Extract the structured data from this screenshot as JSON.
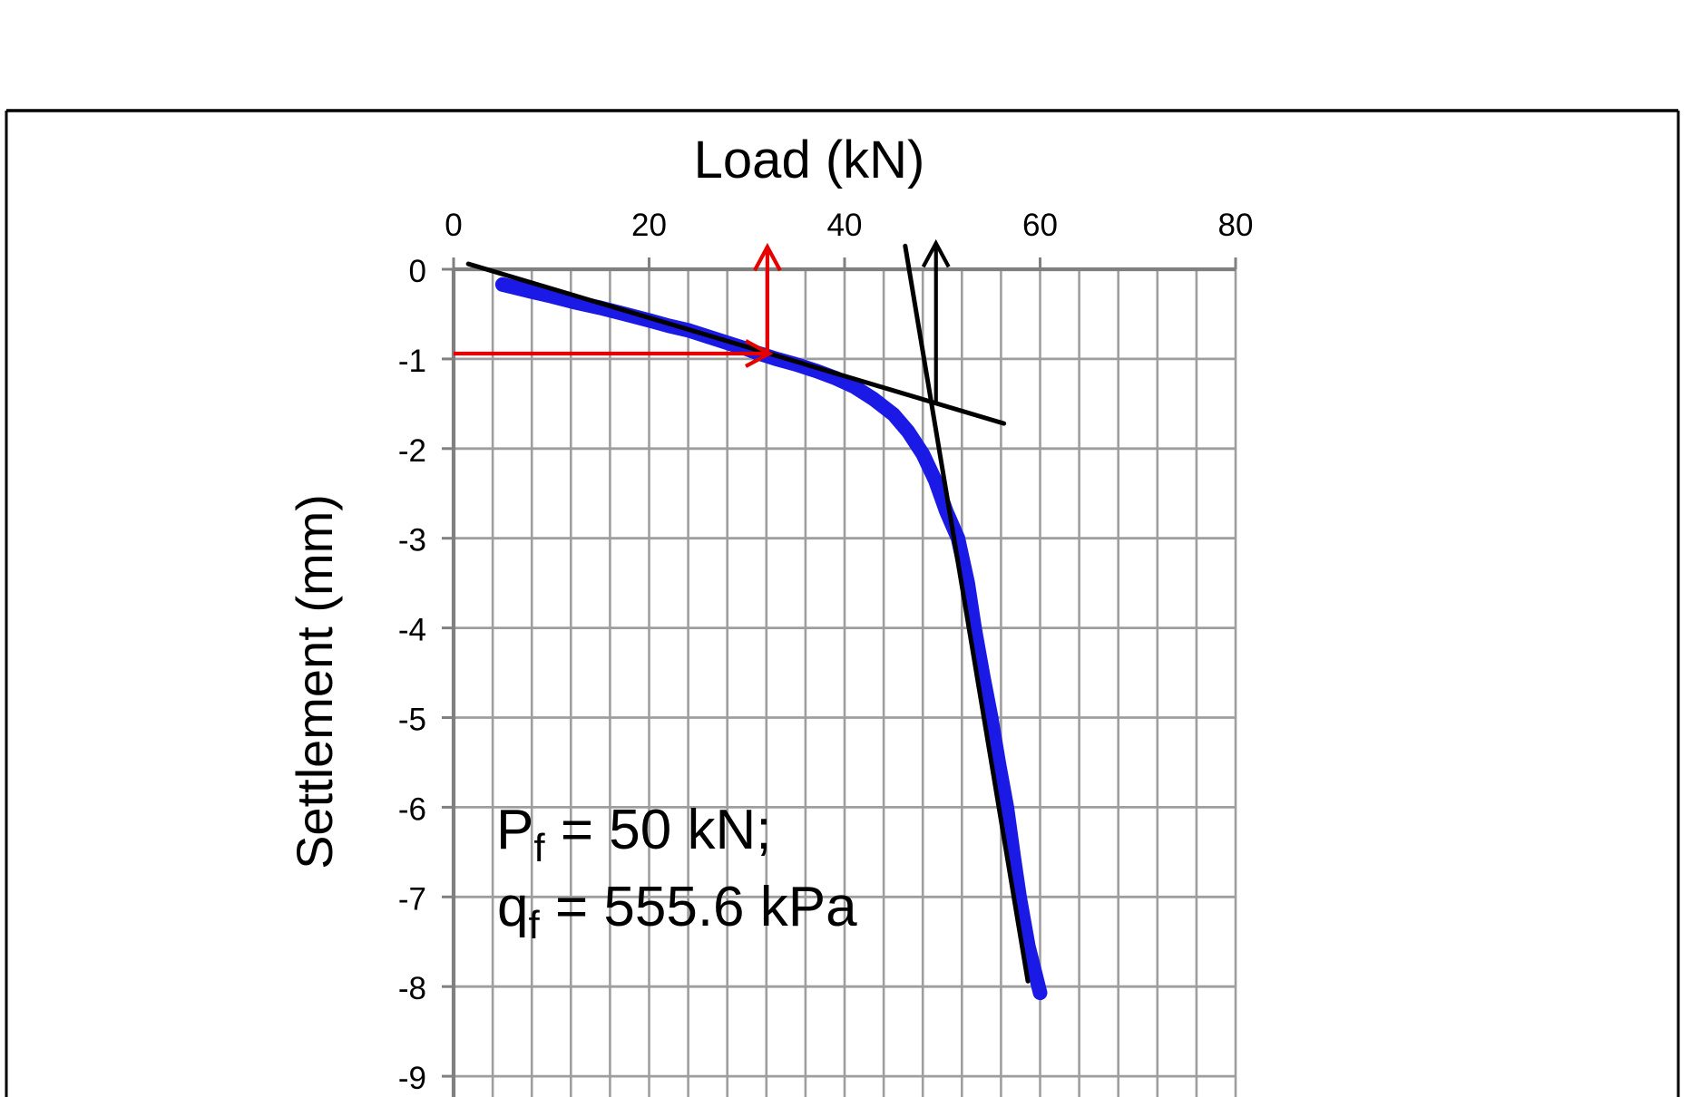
{
  "chart_data": {
    "type": "line",
    "title": "Load (kN)",
    "xlabel": "Load (kN)",
    "ylabel": "Settlement (mm)",
    "xlim": [
      0,
      80
    ],
    "ylim_visible": [
      -9,
      0
    ],
    "x_major_ticks": [
      0,
      20,
      40,
      60,
      80
    ],
    "x_minor_step": 4,
    "y_major_ticks": [
      0,
      -1,
      -2,
      -3,
      -4,
      -5,
      -6,
      -7,
      -8,
      -9
    ],
    "grid": "on",
    "legend": "none",
    "colors": {
      "curve": "#1a19e6",
      "tangent": "#000000",
      "construction": "#e60000",
      "grid": "#9e9e9e",
      "axis": "#808080",
      "frame": "#000000"
    },
    "series": [
      {
        "name": "load-settlement curve",
        "color": "#1a19e6",
        "points": [
          [
            5.0,
            -0.17
          ],
          [
            8.0,
            -0.25
          ],
          [
            10.0,
            -0.3
          ],
          [
            12.5,
            -0.37
          ],
          [
            15.0,
            -0.43
          ],
          [
            17.5,
            -0.5
          ],
          [
            20.0,
            -0.57
          ],
          [
            22.0,
            -0.63
          ],
          [
            24.0,
            -0.68
          ],
          [
            26.0,
            -0.75
          ],
          [
            28.0,
            -0.82
          ],
          [
            30.0,
            -0.89
          ],
          [
            31.0,
            -0.93
          ],
          [
            33.0,
            -1.0
          ],
          [
            35.0,
            -1.06
          ],
          [
            37.0,
            -1.13
          ],
          [
            39.0,
            -1.21
          ],
          [
            41.0,
            -1.31
          ],
          [
            43.0,
            -1.45
          ],
          [
            45.0,
            -1.62
          ],
          [
            46.5,
            -1.81
          ],
          [
            48.0,
            -2.06
          ],
          [
            49.3,
            -2.36
          ],
          [
            50.4,
            -2.7
          ],
          [
            51.6,
            -3.0
          ],
          [
            52.6,
            -3.5
          ],
          [
            53.3,
            -4.0
          ],
          [
            54.2,
            -4.55
          ],
          [
            55.0,
            -5.0
          ],
          [
            55.8,
            -5.52
          ],
          [
            56.6,
            -6.0
          ],
          [
            57.3,
            -6.55
          ],
          [
            57.9,
            -7.0
          ],
          [
            58.8,
            -7.55
          ],
          [
            60.0,
            -8.07
          ]
        ]
      }
    ],
    "tangents": [
      {
        "name": "initial tangent",
        "from": [
          1.5,
          0.06
        ],
        "to": [
          56.3,
          -1.72
        ]
      },
      {
        "name": "final tangent",
        "from": [
          46.2,
          0.26
        ],
        "to": [
          58.75,
          -7.94
        ]
      }
    ],
    "arrows": [
      {
        "name": "failure-load horizontal arrow",
        "color": "#e60000",
        "from": [
          0.0,
          -0.94
        ],
        "to": [
          32.3,
          -0.94
        ]
      },
      {
        "name": "failure-load vertical arrow",
        "color": "#e60000",
        "from": [
          32.1,
          -0.94
        ],
        "to": [
          32.1,
          0.25
        ]
      },
      {
        "name": "tangent-intersection vertical arrow",
        "color": "#000000",
        "from": [
          49.35,
          -1.48
        ],
        "to": [
          49.35,
          0.29
        ]
      }
    ],
    "annotation": {
      "line1": {
        "base": "P",
        "sub": "f",
        "rest": " = 50 kN;"
      },
      "line2": {
        "base": "q",
        "sub": "f",
        "rest": " = 555.6 kPa"
      }
    }
  }
}
